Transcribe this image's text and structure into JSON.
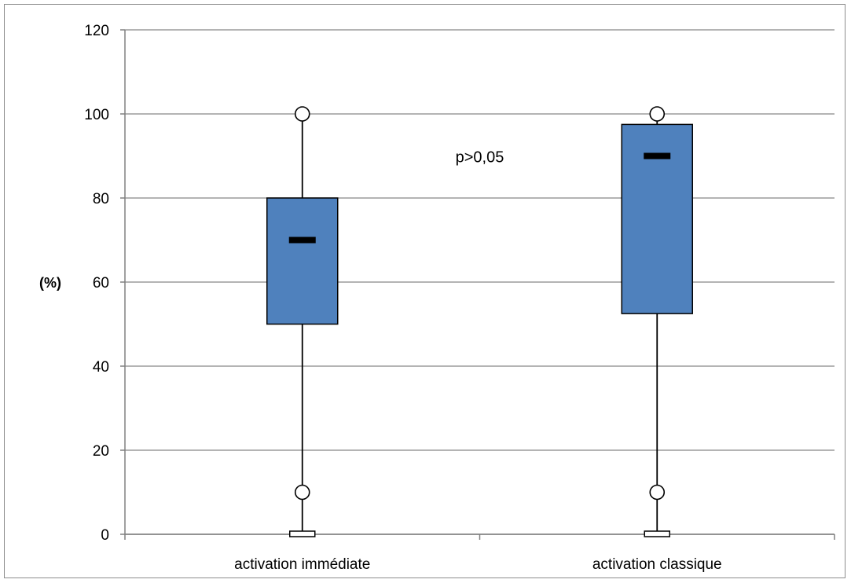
{
  "chart_data": {
    "type": "boxplot",
    "title": "",
    "xlabel": "",
    "ylabel": "(%)",
    "ylim": [
      0,
      120
    ],
    "yticks": [
      0,
      20,
      40,
      60,
      80,
      100,
      120
    ],
    "ytick_labels": [
      "0",
      "20",
      "40",
      "60",
      "80",
      "100",
      "120"
    ],
    "grid": true,
    "legend": "none",
    "categories": [
      "activation immédiate",
      "activation classique"
    ],
    "boxes": [
      {
        "category": "activation immédiate",
        "min": 0,
        "q1": 50,
        "median": 70,
        "q3": 80,
        "max": 100,
        "outliers": [
          100,
          10
        ]
      },
      {
        "category": "activation classique",
        "min": 0,
        "q1": 52.5,
        "median": 90,
        "q3": 97.5,
        "max": 100,
        "outliers": [
          100,
          10
        ]
      }
    ],
    "annotations": [
      {
        "text": "p>0,05",
        "x_between": [
          0,
          1
        ],
        "y": 90
      }
    ],
    "colors": {
      "box_fill": "#4f81bd",
      "box_edge": "#000000",
      "median": "#000000",
      "grid": "#9c9c9c",
      "axis": "#808080"
    }
  }
}
